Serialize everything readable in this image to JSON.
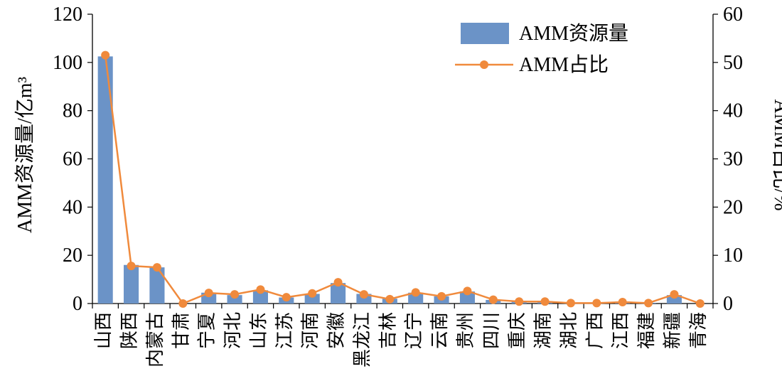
{
  "chart_data": {
    "type": "bar",
    "categories": [
      "山西",
      "陕西",
      "内蒙古",
      "甘肃",
      "宁夏",
      "河北",
      "山东",
      "江苏",
      "河南",
      "安徽",
      "黑龙江",
      "吉林",
      "辽宁",
      "云南",
      "贵州",
      "四川",
      "重庆",
      "湖南",
      "湖北",
      "广西",
      "江西",
      "福建",
      "新疆",
      "青海"
    ],
    "series": [
      {
        "name": "AMM资源量",
        "type": "bar",
        "axis": "left",
        "color": "#6b93c7",
        "values": [
          102.5,
          16.0,
          15.0,
          0.0,
          4.5,
          3.5,
          5.5,
          2.5,
          4.0,
          8.5,
          4.0,
          2.0,
          4.5,
          3.0,
          5.0,
          1.5,
          1.0,
          1.0,
          0.3,
          0.3,
          0.8,
          0.3,
          3.5,
          0.0
        ]
      },
      {
        "name": "AMM占比",
        "type": "line",
        "axis": "right",
        "color": "#f08a3c",
        "values": [
          51.5,
          7.8,
          7.5,
          0.0,
          2.2,
          1.9,
          2.9,
          1.3,
          2.1,
          4.4,
          1.9,
          0.9,
          2.3,
          1.5,
          2.6,
          0.8,
          0.4,
          0.4,
          0.1,
          0.1,
          0.3,
          0.1,
          1.9,
          0.0
        ]
      }
    ],
    "ylabel": "AMM资源量/亿m³",
    "y2label": "AMM占比/%",
    "ylim": [
      0,
      120
    ],
    "y2lim": [
      0,
      60
    ],
    "yticks": [
      0,
      20,
      40,
      60,
      80,
      100,
      120
    ],
    "y2ticks": [
      0,
      10,
      20,
      30,
      40,
      50,
      60
    ],
    "grid": false,
    "legend_position": "top-right"
  }
}
